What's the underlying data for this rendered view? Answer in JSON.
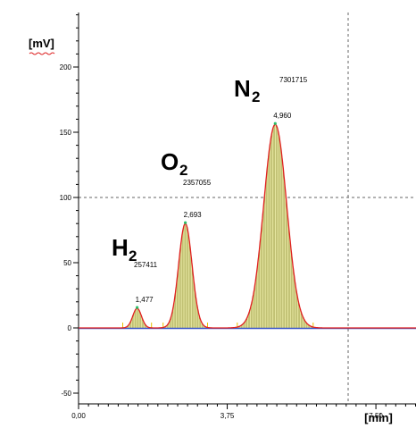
{
  "chart_data": {
    "type": "line",
    "xlabel": "[min]",
    "ylabel": "[mV]",
    "xlim": [
      -0.4,
      8.9
    ],
    "ylim": [
      -50,
      240
    ],
    "x_ticks": [
      {
        "value": 0.0,
        "label": "0,00"
      },
      {
        "value": 3.75,
        "label": "3,75"
      },
      {
        "value": 7.5,
        "label": "7,50"
      }
    ],
    "y_ticks": [
      {
        "value": -50,
        "label": "-50"
      },
      {
        "value": 0,
        "label": "0"
      },
      {
        "value": 50,
        "label": "50"
      },
      {
        "value": 100,
        "label": "100"
      },
      {
        "value": 150,
        "label": "150"
      },
      {
        "value": 200,
        "label": "200"
      }
    ],
    "reference_lines": {
      "x": 6.8,
      "y": 100
    },
    "colors": {
      "signal": "#e02020",
      "baseline": "#3a55c8",
      "fill": "#e6e6a0",
      "hatch": "#6b6b10",
      "ref_line": "#666666"
    },
    "peaks": [
      {
        "name": "H",
        "subscript": "2",
        "retention_time": 1.477,
        "rt_label": "1,477",
        "area": "257411",
        "height": 15,
        "sigma": 0.11
      },
      {
        "name": "O",
        "subscript": "2",
        "retention_time": 2.693,
        "rt_label": "2,693",
        "area": "2357055",
        "height": 80,
        "sigma": 0.17
      },
      {
        "name": "N",
        "subscript": "2",
        "retention_time": 4.96,
        "rt_label": "4,960",
        "area": "7301715",
        "height": 156,
        "sigma": 0.29
      }
    ]
  }
}
